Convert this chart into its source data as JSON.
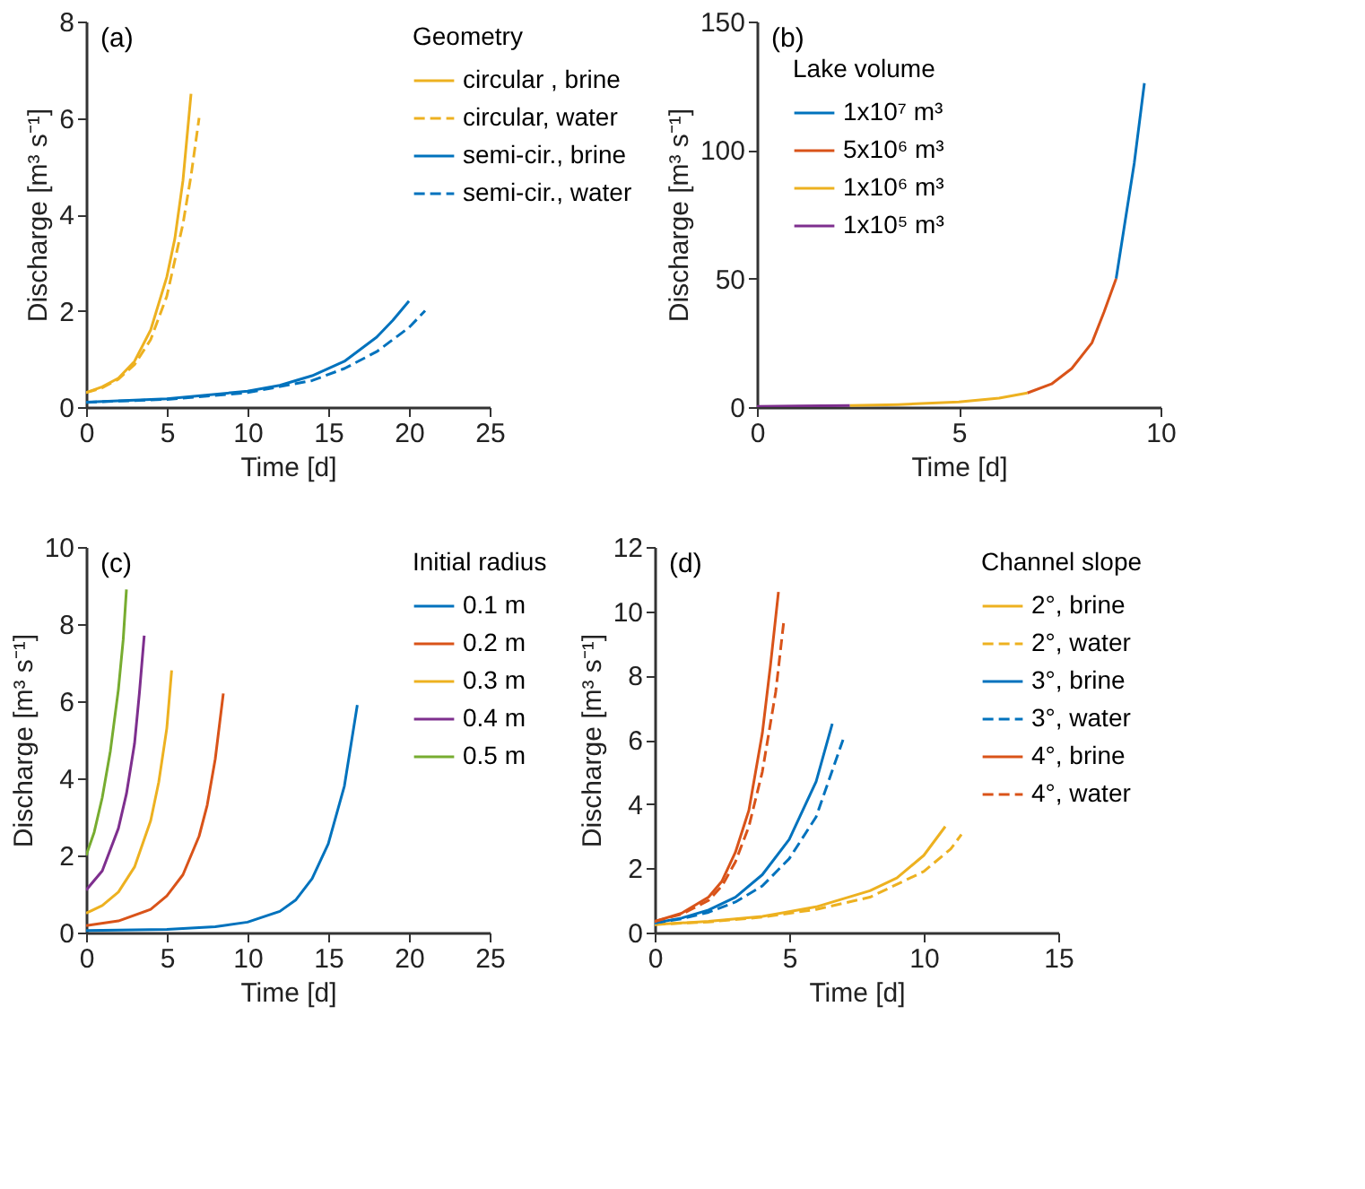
{
  "chart_data": [
    {
      "type": "line",
      "annotations": [
        "(a)"
      ],
      "xlabel": "Time [d]",
      "ylabel": "Discharge [m³ s⁻¹]",
      "legend_title": "Geometry",
      "legend": "top right",
      "xlim": [
        0,
        25
      ],
      "xticks": [
        0,
        5,
        10,
        15,
        20,
        25
      ],
      "ylim": [
        0,
        8
      ],
      "yticks": [
        0,
        2,
        4,
        6,
        8
      ],
      "series": [
        {
          "name": "circular , brine",
          "color": "#edb120",
          "line_style": "solid",
          "x": [
            0,
            1,
            2,
            3,
            4,
            5,
            5.5,
            6,
            6.5
          ],
          "values": [
            0.3,
            0.42,
            0.6,
            0.95,
            1.6,
            2.7,
            3.5,
            4.7,
            6.5
          ]
        },
        {
          "name": "circular, water",
          "color": "#edb120",
          "line_style": "dashed",
          "x": [
            0,
            1,
            2,
            3,
            4,
            5,
            6,
            6.5,
            7
          ],
          "values": [
            0.3,
            0.4,
            0.58,
            0.88,
            1.4,
            2.3,
            3.8,
            4.8,
            6.0
          ]
        },
        {
          "name": "semi-cir., brine",
          "color": "#0072bd",
          "line_style": "solid",
          "x": [
            0,
            5,
            10,
            12,
            14,
            16,
            18,
            19,
            20
          ],
          "values": [
            0.1,
            0.17,
            0.33,
            0.45,
            0.65,
            0.95,
            1.45,
            1.8,
            2.2
          ]
        },
        {
          "name": "semi-cir., water",
          "color": "#0072bd",
          "line_style": "dashed",
          "x": [
            0,
            5,
            10,
            14,
            16,
            18,
            20,
            21
          ],
          "values": [
            0.1,
            0.16,
            0.3,
            0.55,
            0.8,
            1.15,
            1.65,
            2.0
          ]
        }
      ]
    },
    {
      "type": "line",
      "annotations": [
        "(b)"
      ],
      "xlabel": "Time [d]",
      "ylabel": "Discharge [m³ s⁻¹]",
      "legend_title": "Lake volume",
      "legend": "top left",
      "xlim": [
        0,
        10
      ],
      "xticks": [
        0,
        5,
        10
      ],
      "ylim": [
        0,
        150
      ],
      "yticks": [
        0,
        50,
        100,
        150
      ],
      "series": [
        {
          "name": "1x10⁷ m³",
          "color": "#0072bd",
          "line_style": "solid",
          "x": [
            8.9,
            9.1,
            9.35,
            9.6
          ],
          "values": [
            50,
            70,
            95,
            126
          ]
        },
        {
          "name": "5x10⁶ m³",
          "color": "#d95319",
          "line_style": "solid",
          "x": [
            6.7,
            7.3,
            7.8,
            8.3,
            8.6,
            8.9
          ],
          "values": [
            5.5,
            9,
            15,
            25,
            37,
            50
          ]
        },
        {
          "name": "1x10⁶ m³",
          "color": "#edb120",
          "line_style": "solid",
          "x": [
            2.3,
            3.5,
            5,
            6,
            6.7
          ],
          "values": [
            0.6,
            1.0,
            2,
            3.5,
            5.5
          ]
        },
        {
          "name": "1x10⁵ m³",
          "color": "#7e2f8e",
          "line_style": "solid",
          "x": [
            0,
            1,
            2.3
          ],
          "values": [
            0.3,
            0.4,
            0.6
          ]
        }
      ]
    },
    {
      "type": "line",
      "annotations": [
        "(c)"
      ],
      "xlabel": "Time [d]",
      "ylabel": "Discharge [m³ s⁻¹]",
      "legend_title": "Initial radius",
      "legend": "top right",
      "xlim": [
        0,
        25
      ],
      "xticks": [
        0,
        5,
        10,
        15,
        20,
        25
      ],
      "ylim": [
        0,
        10
      ],
      "yticks": [
        0,
        2,
        4,
        6,
        8,
        10
      ],
      "series": [
        {
          "name": "0.1 m",
          "color": "#0072bd",
          "line_style": "solid",
          "x": [
            0,
            5,
            8,
            10,
            12,
            13,
            14,
            15,
            16,
            16.8
          ],
          "values": [
            0.05,
            0.08,
            0.15,
            0.27,
            0.55,
            0.85,
            1.4,
            2.3,
            3.8,
            5.9
          ]
        },
        {
          "name": "0.2 m",
          "color": "#d95319",
          "line_style": "solid",
          "x": [
            0,
            2,
            4,
            5,
            6,
            7,
            7.5,
            8,
            8.5
          ],
          "values": [
            0.18,
            0.3,
            0.6,
            0.95,
            1.5,
            2.5,
            3.3,
            4.5,
            6.2
          ]
        },
        {
          "name": "0.3 m",
          "color": "#edb120",
          "line_style": "solid",
          "x": [
            0,
            1,
            2,
            3,
            4,
            4.5,
            5,
            5.3
          ],
          "values": [
            0.5,
            0.7,
            1.05,
            1.7,
            2.9,
            3.9,
            5.3,
            6.8
          ]
        },
        {
          "name": "0.4 m",
          "color": "#7e2f8e",
          "line_style": "solid",
          "x": [
            0,
            1,
            2,
            2.5,
            3,
            3.3,
            3.6
          ],
          "values": [
            1.1,
            1.6,
            2.7,
            3.6,
            4.9,
            6.2,
            7.7
          ]
        },
        {
          "name": "0.5 m",
          "color": "#77ac30",
          "line_style": "solid",
          "x": [
            0,
            0.5,
            1,
            1.5,
            2,
            2.3,
            2.5
          ],
          "values": [
            2.0,
            2.6,
            3.5,
            4.7,
            6.3,
            7.6,
            8.9
          ]
        }
      ]
    },
    {
      "type": "line",
      "annotations": [
        "(d)"
      ],
      "xlabel": "Time [d]",
      "ylabel": "Discharge [m³ s⁻¹]",
      "legend_title": "Channel slope",
      "legend": "top right",
      "xlim": [
        0,
        15
      ],
      "xticks": [
        0,
        5,
        10,
        15
      ],
      "ylim": [
        0,
        12
      ],
      "yticks": [
        0,
        2,
        4,
        6,
        8,
        10,
        12
      ],
      "series": [
        {
          "name": "2°, brine",
          "color": "#edb120",
          "line_style": "solid",
          "x": [
            0,
            2,
            4,
            6,
            8,
            9,
            10,
            10.8
          ],
          "values": [
            0.25,
            0.35,
            0.5,
            0.8,
            1.3,
            1.7,
            2.4,
            3.3
          ]
        },
        {
          "name": "2°, water",
          "color": "#edb120",
          "line_style": "dashed",
          "x": [
            0,
            2,
            4,
            6,
            8,
            10,
            11,
            11.4
          ],
          "values": [
            0.25,
            0.33,
            0.48,
            0.72,
            1.1,
            1.9,
            2.6,
            3.05
          ]
        },
        {
          "name": "3°, brine",
          "color": "#0072bd",
          "line_style": "solid",
          "x": [
            0,
            1,
            2,
            3,
            4,
            5,
            6,
            6.6
          ],
          "values": [
            0.3,
            0.45,
            0.7,
            1.1,
            1.8,
            2.9,
            4.7,
            6.5
          ]
        },
        {
          "name": "3°, water",
          "color": "#0072bd",
          "line_style": "dashed",
          "x": [
            0,
            1,
            2,
            3,
            4,
            5,
            6,
            7
          ],
          "values": [
            0.3,
            0.43,
            0.63,
            0.95,
            1.45,
            2.3,
            3.6,
            6.0
          ]
        },
        {
          "name": "4°, brine",
          "color": "#d95319",
          "line_style": "solid",
          "x": [
            0,
            1,
            2,
            2.5,
            3,
            3.5,
            4,
            4.3,
            4.6
          ],
          "values": [
            0.35,
            0.6,
            1.1,
            1.6,
            2.5,
            3.8,
            6.2,
            8.3,
            10.6
          ]
        },
        {
          "name": "4°, water",
          "color": "#d95319",
          "line_style": "dashed",
          "x": [
            0,
            1,
            2,
            2.5,
            3,
            3.5,
            4,
            4.5,
            4.8
          ],
          "values": [
            0.35,
            0.57,
            1.0,
            1.45,
            2.2,
            3.3,
            5.0,
            7.5,
            9.7
          ]
        }
      ]
    }
  ]
}
